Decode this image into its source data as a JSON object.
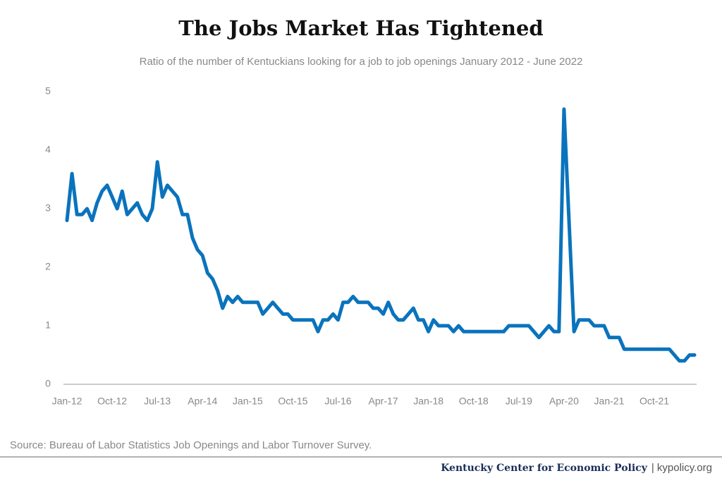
{
  "chart_data": {
    "type": "line",
    "title": "The Jobs Market Has Tightened",
    "subtitle": "Ratio of the number of Kentuckians looking for a job to job openings January 2012 - June 2022",
    "categories": [
      "Jan-12",
      null,
      null,
      null,
      null,
      null,
      null,
      null,
      null,
      "Oct-12",
      null,
      null,
      null,
      null,
      null,
      null,
      null,
      null,
      "Jul-13",
      null,
      null,
      null,
      null,
      null,
      null,
      null,
      null,
      "Apr-14",
      null,
      null,
      null,
      null,
      null,
      null,
      null,
      null,
      "Jan-15",
      null,
      null,
      null,
      null,
      null,
      null,
      null,
      null,
      "Oct-15",
      null,
      null,
      null,
      null,
      null,
      null,
      null,
      null,
      "Jul-16",
      null,
      null,
      null,
      null,
      null,
      null,
      null,
      null,
      "Apr-17",
      null,
      null,
      null,
      null,
      null,
      null,
      null,
      null,
      "Jan-18",
      null,
      null,
      null,
      null,
      null,
      null,
      null,
      null,
      "Oct-18",
      null,
      null,
      null,
      null,
      null,
      null,
      null,
      null,
      "Jul-19",
      null,
      null,
      null,
      null,
      null,
      null,
      null,
      null,
      "Apr-20",
      null,
      null,
      null,
      null,
      null,
      null,
      null,
      null,
      "Jan-21",
      null,
      null,
      null,
      null,
      null,
      null,
      null,
      null,
      "Oct-21",
      null,
      null,
      null,
      null,
      null,
      null,
      null,
      null
    ],
    "values": [
      2.8,
      3.6,
      2.9,
      2.9,
      3.0,
      2.8,
      3.1,
      3.3,
      3.4,
      3.2,
      3.0,
      3.3,
      2.9,
      3.0,
      3.1,
      2.9,
      2.8,
      3.0,
      3.8,
      3.2,
      3.4,
      3.3,
      3.2,
      2.9,
      2.9,
      2.5,
      2.3,
      2.2,
      1.9,
      1.8,
      1.6,
      1.3,
      1.5,
      1.4,
      1.5,
      1.4,
      1.4,
      1.4,
      1.4,
      1.2,
      1.3,
      1.4,
      1.3,
      1.2,
      1.2,
      1.1,
      1.1,
      1.1,
      1.1,
      1.1,
      0.9,
      1.1,
      1.1,
      1.2,
      1.1,
      1.4,
      1.4,
      1.5,
      1.4,
      1.4,
      1.4,
      1.3,
      1.3,
      1.2,
      1.4,
      1.2,
      1.1,
      1.1,
      1.2,
      1.3,
      1.1,
      1.1,
      0.9,
      1.1,
      1.0,
      1.0,
      1.0,
      0.9,
      1.0,
      0.9,
      0.9,
      0.9,
      0.9,
      0.9,
      0.9,
      0.9,
      0.9,
      0.9,
      1.0,
      1.0,
      1.0,
      1.0,
      1.0,
      0.9,
      0.8,
      0.9,
      1.0,
      0.9,
      0.9,
      4.7,
      2.8,
      0.9,
      1.1,
      1.1,
      1.1,
      1.0,
      1.0,
      1.0,
      0.8,
      0.8,
      0.8,
      0.6,
      0.6,
      0.6,
      0.6,
      0.6,
      0.6,
      0.6,
      0.6,
      0.6,
      0.6,
      0.5,
      0.4,
      0.4,
      0.5,
      0.5
    ],
    "color": "#0a73bd",
    "ylim": [
      0,
      5
    ],
    "yticks": [
      0,
      1,
      2,
      3,
      4,
      5
    ],
    "grid": false,
    "source": "Source: Bureau of Labor Statistics Job Openings and Labor Turnover Survey.",
    "footer_org": "Kentucky Center for Economic Policy",
    "footer_site": "| kypolicy.org"
  }
}
